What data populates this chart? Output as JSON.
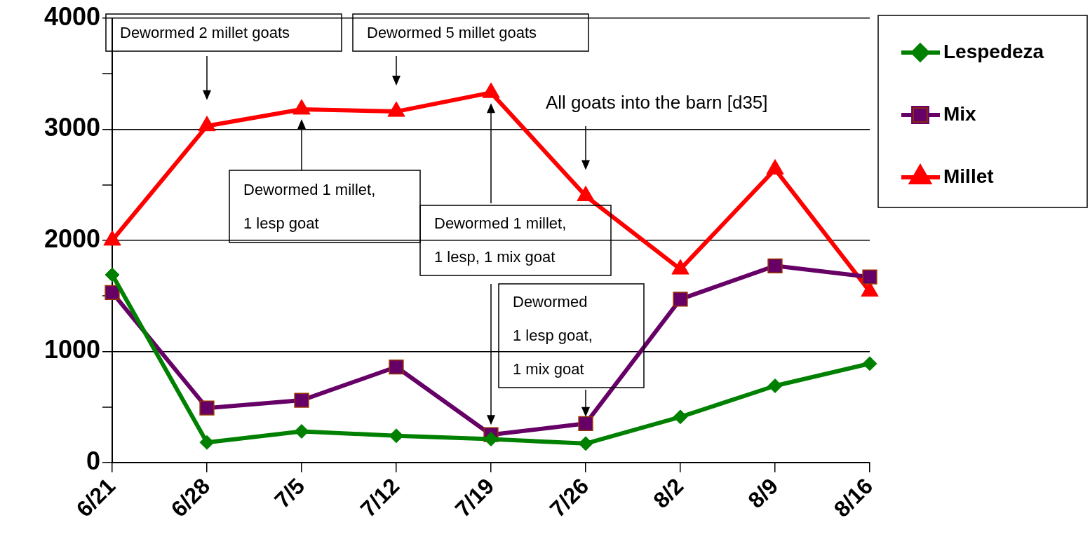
{
  "chart_data": {
    "type": "line",
    "categories": [
      "6/21",
      "6/28",
      "7/5",
      "7/12",
      "7/19",
      "7/26",
      "8/2",
      "8/9",
      "8/16"
    ],
    "series": [
      {
        "name": "Lespedeza",
        "color": "#008000",
        "marker": "diamond",
        "values": [
          1690,
          180,
          280,
          240,
          210,
          170,
          410,
          690,
          890
        ]
      },
      {
        "name": "Mix",
        "color": "#660066",
        "marker": "square",
        "values": [
          1530,
          490,
          560,
          860,
          250,
          350,
          1470,
          1770,
          1670
        ]
      },
      {
        "name": "Millet",
        "color": "#ff0000",
        "marker": "triangle",
        "values": [
          2000,
          3030,
          3180,
          3160,
          3330,
          2400,
          1740,
          2640,
          1540
        ]
      }
    ],
    "ylim": [
      0,
      4000
    ],
    "yticks": [
      0,
      {
        "value": 500,
        "label": null
      },
      1000,
      {
        "value": 1500,
        "label": null
      },
      2000,
      {
        "value": 2500,
        "label": null
      },
      3000,
      {
        "value": 3500,
        "label": null
      },
      4000
    ],
    "grid": "y",
    "legend": "right",
    "line_style": "solid",
    "annotations": [
      "Dewormed 2 millet goats",
      "Dewormed 5 millet goats",
      "All goats into the barn [d35]",
      "Dewormed 1 millet,\n1 lesp goat",
      "Dewormed 1 millet,\n1 lesp, 1 mix goat",
      {
        "text": "Dewormed\n1 lesp goat,\n1 mix goat",
        "x": "7/26",
        "y": 410
      }
    ]
  }
}
